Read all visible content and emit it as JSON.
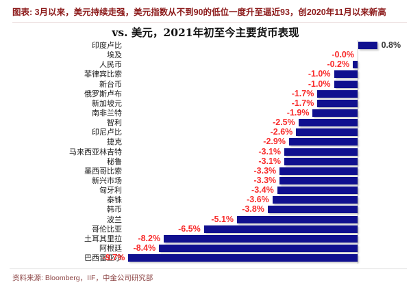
{
  "header": {
    "title": "图表: 3月以来，美元持续走强，美元指数从不到90的低位一度升至逼近93，创2020年11月以来新高"
  },
  "chart": {
    "title": "vs. 美元，2021年初至今主要货币表现"
  },
  "chart_data": {
    "type": "bar",
    "orientation": "horizontal",
    "title": "vs. 美元，2021年初至今主要货币表现",
    "categories": [
      "印度卢比",
      "埃及",
      "人民币",
      "菲律宾比索",
      "新台币",
      "俄罗斯卢布",
      "新加坡元",
      "南非兰特",
      "智利",
      "印尼卢比",
      "捷克",
      "马来西亚林吉特",
      "秘鲁",
      "墨西哥比索",
      "新兴市场",
      "匈牙利",
      "泰铢",
      "韩币",
      "波兰",
      "哥伦比亚",
      "土耳其里拉",
      "阿根廷",
      "巴西雷亚尔"
    ],
    "values": [
      0.8,
      -0.0,
      -0.2,
      -1.0,
      -1.0,
      -1.7,
      -1.7,
      -1.9,
      -2.5,
      -2.6,
      -2.9,
      -3.1,
      -3.1,
      -3.3,
      -3.3,
      -3.4,
      -3.6,
      -3.8,
      -5.1,
      -6.5,
      -8.2,
      -8.4,
      -9.7
    ],
    "labels": [
      "0.8%",
      "-0.0%",
      "-0.2%",
      "-1.0%",
      "-1.0%",
      "-1.7%",
      "-1.7%",
      "-1.9%",
      "-2.5%",
      "-2.6%",
      "-2.9%",
      "-3.1%",
      "-3.1%",
      "-3.3%",
      "-3.3%",
      "-3.4%",
      "-3.6%",
      "-3.8%",
      "-5.1%",
      "-6.5%",
      "-8.2%",
      "-8.4%",
      "-9.7%"
    ],
    "xlim": [
      -10.5,
      2.5
    ],
    "grid": false,
    "legend": "none",
    "bar_color": "#10108F",
    "negative_label_color": "#F82C2C",
    "positive_label_color": "#3A3A3A",
    "axis_line_color": "#C9C9C9"
  },
  "footer": {
    "source": "资料来源: Bloomberg，IIF，中金公司研究部"
  }
}
